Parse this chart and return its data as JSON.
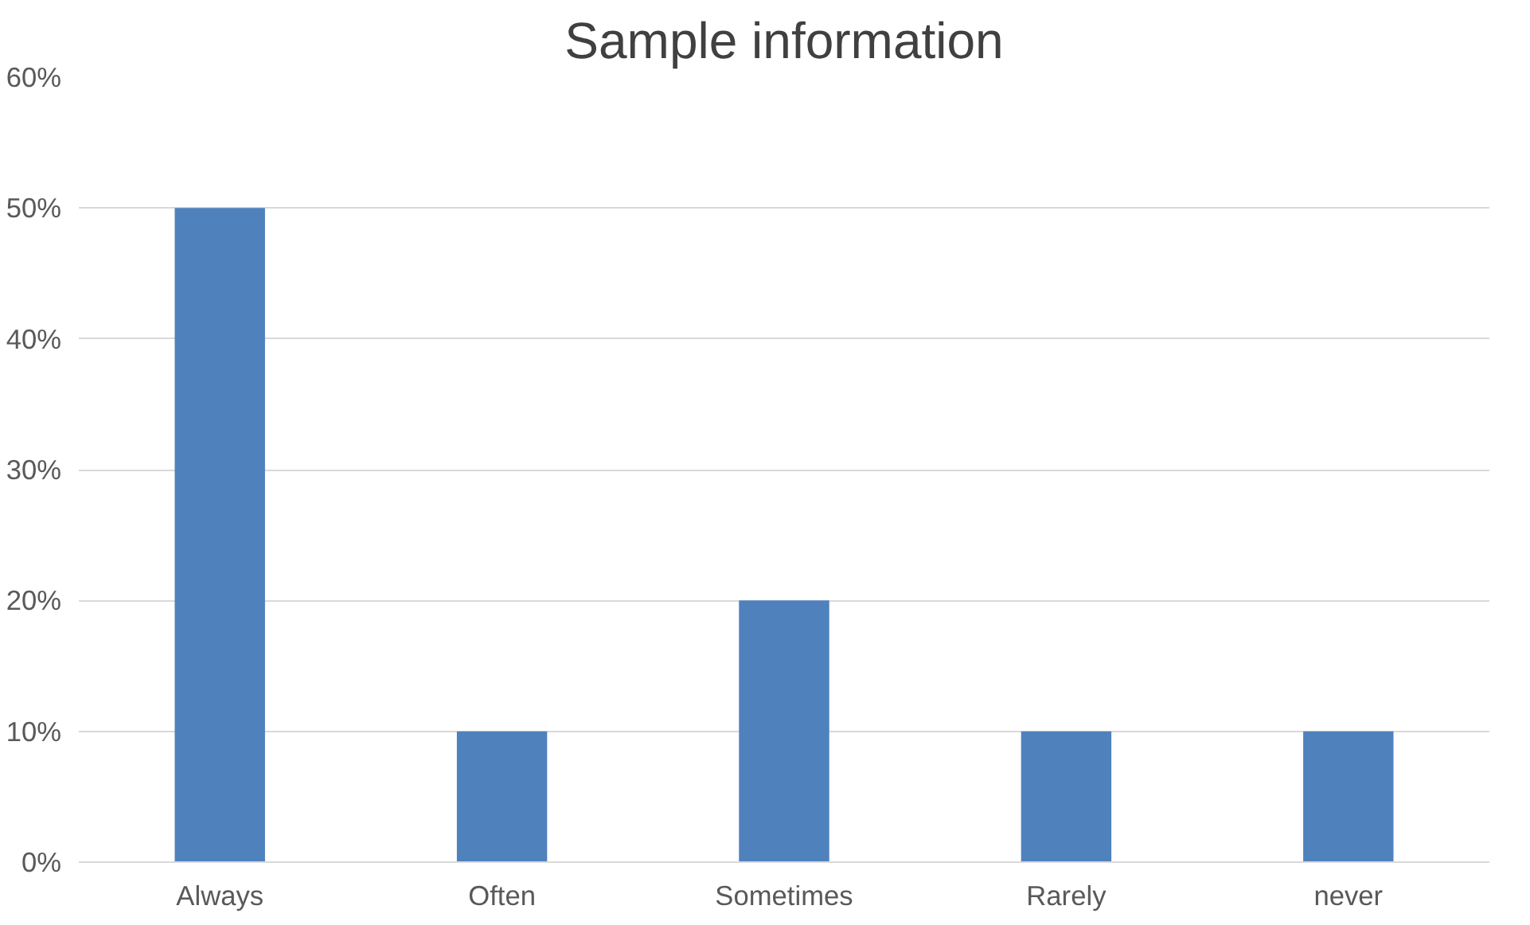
{
  "chart_data": {
    "type": "bar",
    "title": "Sample information",
    "categories": [
      "Always",
      "Often",
      "Sometimes",
      "Rarely",
      "never"
    ],
    "values": [
      50,
      10,
      20,
      10,
      10
    ],
    "color": "#4f81bd",
    "ylim": [
      0,
      60
    ],
    "yticks": [
      {
        "value": 0,
        "label": "0%"
      },
      {
        "value": 10,
        "label": "10%"
      },
      {
        "value": 20,
        "label": "20%"
      },
      {
        "value": 30,
        "label": "30%"
      },
      {
        "value": 40,
        "label": "40%"
      },
      {
        "value": 50,
        "label": "50%"
      },
      {
        "value": 60,
        "label": "60%"
      }
    ],
    "grid": "y"
  }
}
